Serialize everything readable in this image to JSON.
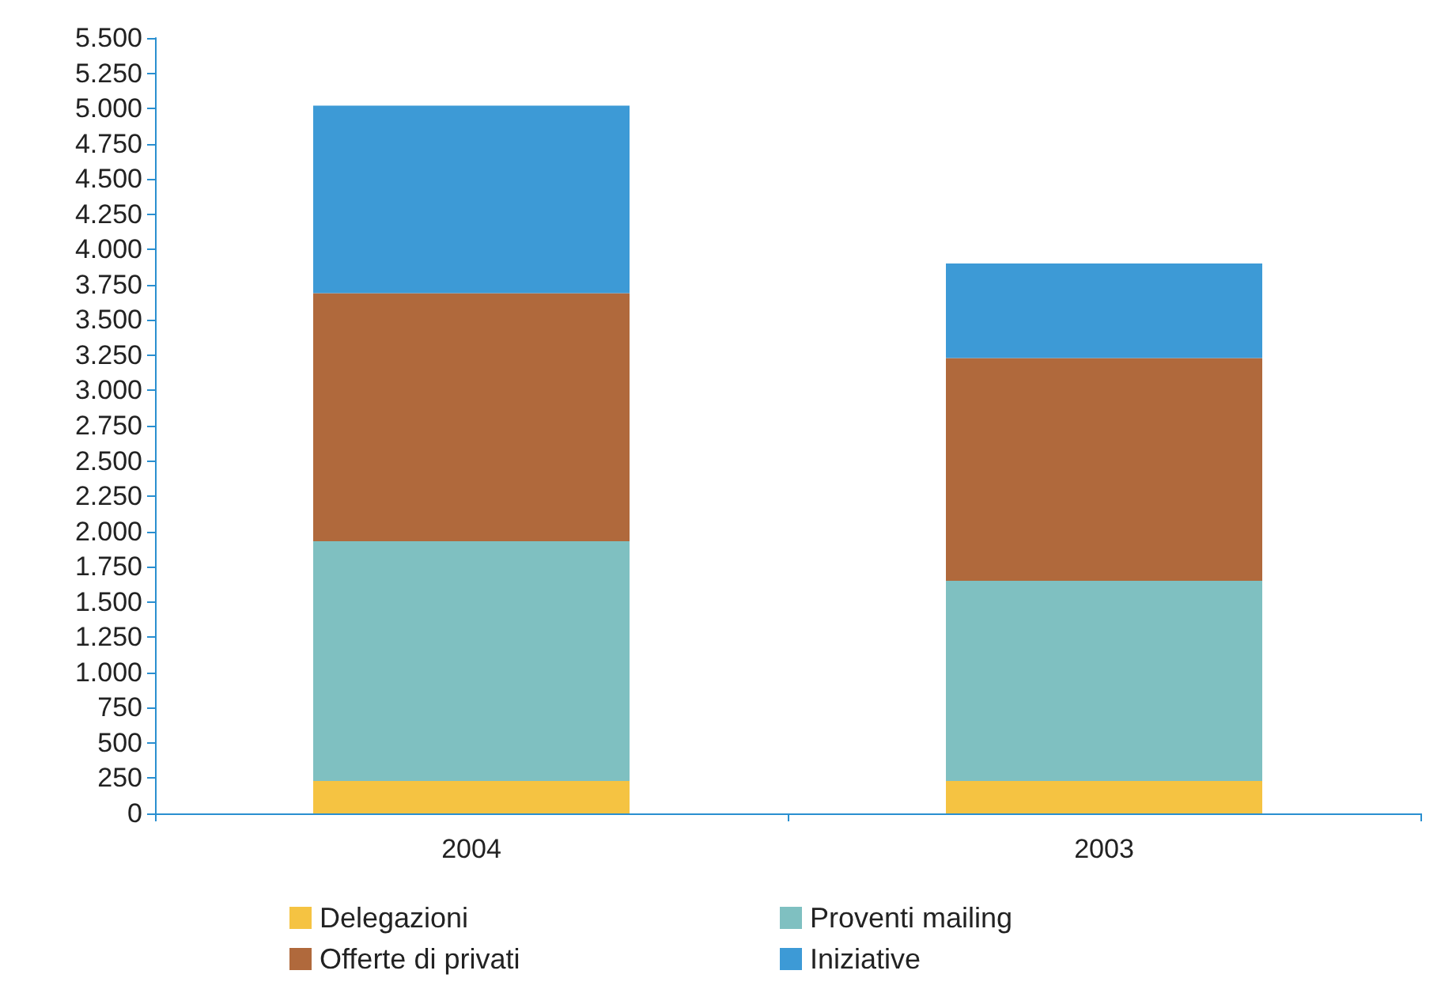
{
  "chart_data": {
    "type": "bar",
    "stacked": true,
    "categories": [
      "2004",
      "2003"
    ],
    "series": [
      {
        "name": "Delegazioni",
        "color": "#f5c342",
        "values": [
          230,
          230
        ]
      },
      {
        "name": "Proventi mailing",
        "color": "#7fc0c1",
        "values": [
          1700,
          1420
        ]
      },
      {
        "name": "Offerte di privati",
        "color": "#b0693c",
        "values": [
          1760,
          1580
        ]
      },
      {
        "name": "Iniziative",
        "color": "#3d9ad6",
        "values": [
          1330,
          670
        ]
      }
    ],
    "ylim": [
      0,
      5500
    ],
    "yticks": [
      0,
      250,
      500,
      750,
      {
        "value": 1000,
        "label": "1.000"
      },
      {
        "value": 1250,
        "label": "1.250"
      },
      {
        "value": 1500,
        "label": "1.500"
      },
      {
        "value": 1750,
        "label": "1.750"
      },
      {
        "value": 2000,
        "label": "2.000"
      },
      {
        "value": 2250,
        "label": "2.250"
      },
      {
        "value": 2500,
        "label": "2.500"
      },
      {
        "value": 2750,
        "label": "2.750"
      },
      {
        "value": 3000,
        "label": "3.000"
      },
      {
        "value": 3250,
        "label": "3.250"
      },
      {
        "value": 3500,
        "label": "3.500"
      },
      {
        "value": 3750,
        "label": "3.750"
      },
      {
        "value": 4000,
        "label": "4.000"
      },
      {
        "value": 4250,
        "label": "4.250"
      },
      {
        "value": 4500,
        "label": "4.500"
      },
      {
        "value": 4750,
        "label": "4.750"
      },
      {
        "value": 5000,
        "label": "5.000"
      },
      {
        "value": 5250,
        "label": "5.250"
      },
      {
        "value": 5500,
        "label": "5.500"
      }
    ],
    "grid": false,
    "legend": "bottom"
  }
}
